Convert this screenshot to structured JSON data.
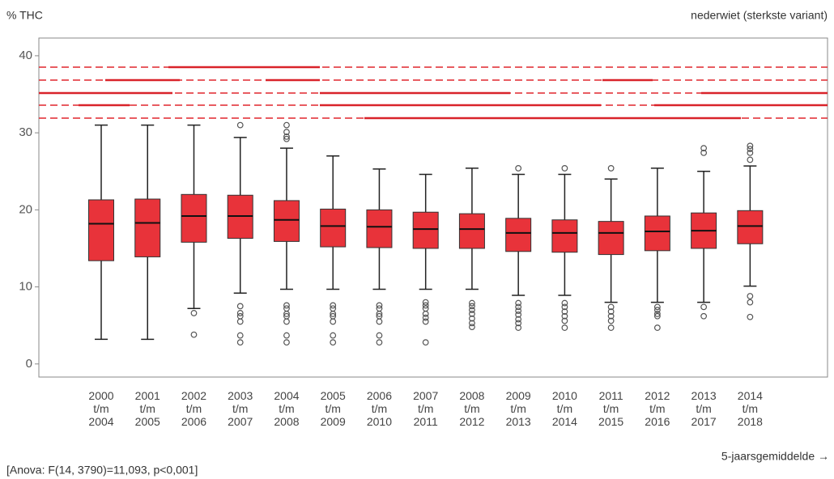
{
  "chart_data": {
    "type": "box",
    "title": "nederwiet (sterkste variant)",
    "y_label": "% THC",
    "x_label": "5-jaarsgemiddelde →",
    "annotation": "[Anova: F(14, 3790)=11,093, p<0,001]",
    "categories": [
      [
        "2000",
        "t/m",
        "2004"
      ],
      [
        "2001",
        "t/m",
        "2005"
      ],
      [
        "2002",
        "t/m",
        "2006"
      ],
      [
        "2003",
        "t/m",
        "2007"
      ],
      [
        "2004",
        "t/m",
        "2008"
      ],
      [
        "2005",
        "t/m",
        "2009"
      ],
      [
        "2006",
        "t/m",
        "2010"
      ],
      [
        "2007",
        "t/m",
        "2011"
      ],
      [
        "2008",
        "t/m",
        "2012"
      ],
      [
        "2009",
        "t/m",
        "2013"
      ],
      [
        "2010",
        "t/m",
        "2014"
      ],
      [
        "2011",
        "t/m",
        "2015"
      ],
      [
        "2012",
        "t/m",
        "2016"
      ],
      [
        "2013",
        "t/m",
        "2017"
      ],
      [
        "2014",
        "t/m",
        "2018"
      ]
    ],
    "color": "#e8333a",
    "boxes": [
      {
        "low": 3.2,
        "q1": 13.4,
        "median": 18.2,
        "q3": 21.3,
        "high": 31,
        "outliers": []
      },
      {
        "low": 3.2,
        "q1": 13.9,
        "median": 18.3,
        "q3": 21.4,
        "high": 31,
        "outliers": []
      },
      {
        "low": 7.2,
        "q1": 15.8,
        "median": 19.2,
        "q3": 22.0,
        "high": 31,
        "outliers": [
          6.6,
          3.8
        ]
      },
      {
        "low": 9.2,
        "q1": 16.3,
        "median": 19.2,
        "q3": 21.9,
        "high": 29.4,
        "outliers": [
          31,
          7.5,
          6.6,
          6.2,
          5.5,
          3.7,
          2.8
        ]
      },
      {
        "low": 9.7,
        "q1": 15.9,
        "median": 18.7,
        "q3": 21.2,
        "high": 28,
        "outliers": [
          29.2,
          29.5,
          30.1,
          31,
          7.6,
          7.2,
          6.5,
          6.2,
          5.5,
          3.7,
          2.8
        ]
      },
      {
        "low": 9.7,
        "q1": 15.2,
        "median": 17.9,
        "q3": 20.1,
        "high": 27,
        "outliers": [
          7.6,
          7.2,
          6.5,
          6.2,
          5.5,
          3.7,
          2.8
        ]
      },
      {
        "low": 9.7,
        "q1": 15.1,
        "median": 17.8,
        "q3": 20.0,
        "high": 25.3,
        "outliers": [
          7.6,
          7.2,
          6.5,
          6.2,
          5.5,
          3.7,
          2.8
        ]
      },
      {
        "low": 9.7,
        "q1": 15.0,
        "median": 17.5,
        "q3": 19.7,
        "high": 24.6,
        "outliers": [
          8.0,
          7.6,
          7.2,
          6.5,
          6.0,
          5.5,
          2.8
        ]
      },
      {
        "low": 9.7,
        "q1": 15.0,
        "median": 17.5,
        "q3": 19.5,
        "high": 25.4,
        "outliers": [
          7.9,
          7.5,
          7.0,
          6.5,
          5.9,
          5.3,
          4.8
        ]
      },
      {
        "low": 8.9,
        "q1": 14.6,
        "median": 17.0,
        "q3": 18.9,
        "high": 24.6,
        "outliers": [
          25.4,
          7.9,
          7.4,
          6.9,
          6.4,
          5.8,
          5.3,
          4.7
        ]
      },
      {
        "low": 8.9,
        "q1": 14.5,
        "median": 17.0,
        "q3": 18.7,
        "high": 24.6,
        "outliers": [
          25.4,
          7.9,
          7.4,
          6.8,
          6.2,
          5.6,
          4.7
        ]
      },
      {
        "low": 8.0,
        "q1": 14.2,
        "median": 17.0,
        "q3": 18.5,
        "high": 24.0,
        "outliers": [
          25.4,
          7.4,
          6.8,
          6.2,
          5.6,
          4.7
        ]
      },
      {
        "low": 8.0,
        "q1": 14.7,
        "median": 17.2,
        "q3": 19.2,
        "high": 25.4,
        "outliers": [
          7.4,
          7.0,
          6.5,
          6.2,
          4.7
        ]
      },
      {
        "low": 8.0,
        "q1": 15.0,
        "median": 17.3,
        "q3": 19.6,
        "high": 25.0,
        "outliers": [
          27.4,
          28.0,
          7.4,
          6.2
        ]
      },
      {
        "low": 10.1,
        "q1": 15.6,
        "median": 17.9,
        "q3": 19.9,
        "high": 25.7,
        "outliers": [
          26.5,
          27.4,
          27.9,
          28.3,
          8.8,
          8.0,
          6.1
        ]
      }
    ],
    "ylim": [
      -1.7,
      42.3
    ],
    "yticks": [
      0,
      10,
      20,
      30,
      40
    ]
  }
}
